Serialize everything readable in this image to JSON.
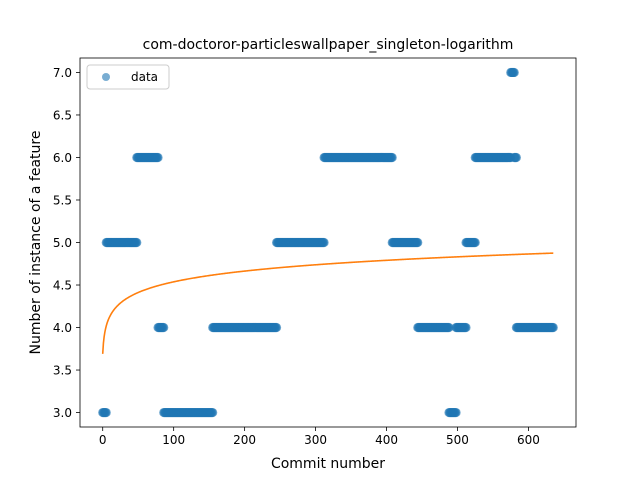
{
  "chart_data": {
    "type": "scatter",
    "title": "com-doctoror-particleswallpaper_singleton-logarithm",
    "xlabel": "Commit number",
    "ylabel": "Number of instance of a feature",
    "xlim": [
      -32,
      667
    ],
    "ylim": [
      2.83,
      7.17
    ],
    "xticks": [
      0,
      100,
      200,
      300,
      400,
      500,
      600
    ],
    "yticks": [
      3.0,
      3.5,
      4.0,
      4.5,
      5.0,
      5.5,
      6.0,
      6.5,
      7.0
    ],
    "ytick_labels": [
      "3.0",
      "3.5",
      "4.0",
      "4.5",
      "5.0",
      "5.5",
      "6.0",
      "6.5",
      "7.0"
    ],
    "legend": {
      "position": "upper-left",
      "entries": [
        "data"
      ]
    },
    "colors": {
      "data": "#1f77b4",
      "fit": "#ff7f0e"
    },
    "series": [
      {
        "name": "data",
        "kind": "points",
        "segments": [
          {
            "y": 3,
            "x_from": 0,
            "x_to": 5
          },
          {
            "y": 5,
            "x_from": 5,
            "x_to": 48
          },
          {
            "y": 6,
            "x_from": 48,
            "x_to": 78
          },
          {
            "y": 4,
            "x_from": 78,
            "x_to": 86
          },
          {
            "y": 3,
            "x_from": 86,
            "x_to": 155
          },
          {
            "y": 4,
            "x_from": 155,
            "x_to": 245
          },
          {
            "y": 5,
            "x_from": 245,
            "x_to": 312
          },
          {
            "y": 6,
            "x_from": 312,
            "x_to": 408
          },
          {
            "y": 5,
            "x_from": 408,
            "x_to": 444
          },
          {
            "y": 4,
            "x_from": 444,
            "x_to": 488
          },
          {
            "y": 3,
            "x_from": 488,
            "x_to": 498
          },
          {
            "y": 4,
            "x_from": 498,
            "x_to": 512
          },
          {
            "y": 5,
            "x_from": 512,
            "x_to": 525
          },
          {
            "y": 6,
            "x_from": 525,
            "x_to": 575
          },
          {
            "y": 7,
            "x_from": 575,
            "x_to": 580
          },
          {
            "y": 6,
            "x_from": 580,
            "x_to": 583
          },
          {
            "y": 4,
            "x_from": 583,
            "x_to": 635
          }
        ]
      },
      {
        "kind": "fit-line",
        "model": "a + b*ln(x+1)",
        "a": 3.69,
        "b": 0.1836,
        "x_range": [
          0,
          635
        ]
      }
    ]
  }
}
